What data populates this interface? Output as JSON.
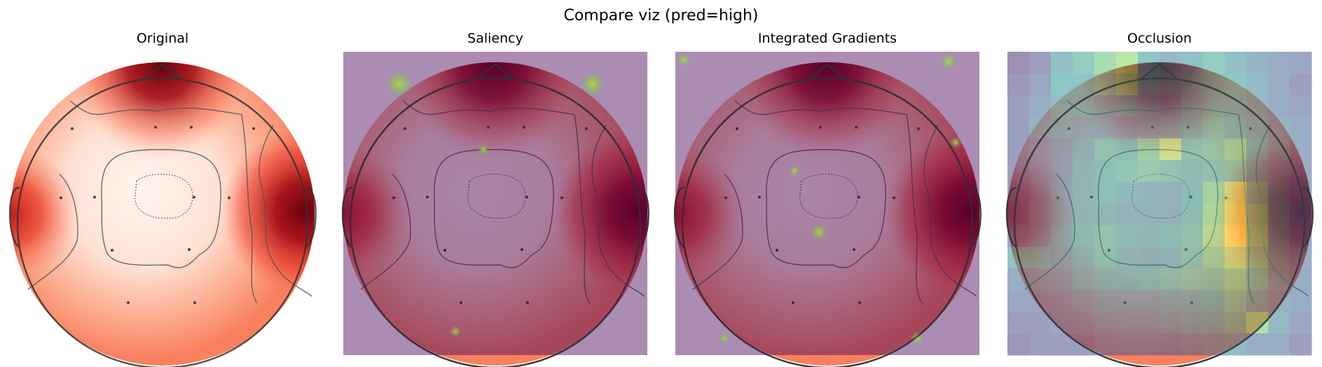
{
  "figure": {
    "title": "Compare viz (pred=high)"
  },
  "panels": [
    {
      "id": "original",
      "title": "Original"
    },
    {
      "id": "saliency",
      "title": "Saliency"
    },
    {
      "id": "ig",
      "title": "Integrated Gradients"
    },
    {
      "id": "occlusion",
      "title": "Occlusion"
    }
  ],
  "chart_data": {
    "type": "heatmap",
    "title": "Compare viz (pred=high)",
    "subplots": [
      {
        "name": "Original",
        "kind": "eeg-topomap",
        "colormap": "Reds",
        "overlay": "none"
      },
      {
        "name": "Saliency",
        "kind": "eeg-topomap",
        "colormap": "Reds",
        "overlay": "attribution-map",
        "overlay_colormap": "viridis",
        "overlay_alpha": 0.5
      },
      {
        "name": "Integrated Gradients",
        "kind": "eeg-topomap",
        "colormap": "Reds",
        "overlay": "attribution-map",
        "overlay_colormap": "viridis",
        "overlay_alpha": 0.5
      },
      {
        "name": "Occlusion",
        "kind": "eeg-topomap",
        "colormap": "Reds",
        "overlay": "attribution-map",
        "overlay_colormap": "viridis",
        "overlay_alpha": 0.5,
        "overlay_grid": [
          14,
          14
        ]
      }
    ],
    "occlusion_grid": [
      [
        0.1,
        0.2,
        0.45,
        0.55,
        0.7,
        0.8,
        0.5,
        0.4,
        0.45,
        0.55,
        0.45,
        0.35,
        0.3,
        0.25
      ],
      [
        0.15,
        0.25,
        0.5,
        0.5,
        0.6,
        0.7,
        0.5,
        0.45,
        0.5,
        0.5,
        0.5,
        0.4,
        0.3,
        0.2
      ],
      [
        0.2,
        0.3,
        0.45,
        0.45,
        0.4,
        0.45,
        0.4,
        0.35,
        0.45,
        0.5,
        0.45,
        0.4,
        0.3,
        0.25
      ],
      [
        0.2,
        0.35,
        0.4,
        0.35,
        0.35,
        0.3,
        0.35,
        0.4,
        0.45,
        0.55,
        0.5,
        0.45,
        0.35,
        0.3
      ],
      [
        0.2,
        0.25,
        0.3,
        0.4,
        0.55,
        0.5,
        0.65,
        0.85,
        0.55,
        0.6,
        0.7,
        0.5,
        0.4,
        0.3
      ],
      [
        0.2,
        0.25,
        0.3,
        0.45,
        0.5,
        0.55,
        0.6,
        0.55,
        0.5,
        0.55,
        0.6,
        0.45,
        0.35,
        0.3
      ],
      [
        0.2,
        0.25,
        0.35,
        0.45,
        0.5,
        0.45,
        0.4,
        0.4,
        0.5,
        0.7,
        0.9,
        0.6,
        0.4,
        0.3
      ],
      [
        0.2,
        0.3,
        0.35,
        0.45,
        0.45,
        0.4,
        0.4,
        0.4,
        0.5,
        0.75,
        0.95,
        0.7,
        0.45,
        0.3
      ],
      [
        0.25,
        0.3,
        0.4,
        0.5,
        0.55,
        0.5,
        0.45,
        0.5,
        0.55,
        0.8,
        1.0,
        0.75,
        0.45,
        0.3
      ],
      [
        0.5,
        0.45,
        0.35,
        0.45,
        0.55,
        0.45,
        0.4,
        0.45,
        0.55,
        0.7,
        0.85,
        0.65,
        0.45,
        0.35
      ],
      [
        0.3,
        0.3,
        0.3,
        0.4,
        0.45,
        0.45,
        0.5,
        0.55,
        0.6,
        0.6,
        0.7,
        0.55,
        0.4,
        0.3
      ],
      [
        0.25,
        0.25,
        0.25,
        0.3,
        0.35,
        0.35,
        0.35,
        0.4,
        0.45,
        0.5,
        0.6,
        0.45,
        0.35,
        0.3
      ],
      [
        0.2,
        0.2,
        0.25,
        0.25,
        0.3,
        0.3,
        0.3,
        0.35,
        0.4,
        0.45,
        0.55,
        0.75,
        0.4,
        0.25
      ],
      [
        0.15,
        0.2,
        0.2,
        0.2,
        0.25,
        0.25,
        0.25,
        0.25,
        0.3,
        0.35,
        0.4,
        0.3,
        0.3,
        0.2
      ]
    ]
  }
}
